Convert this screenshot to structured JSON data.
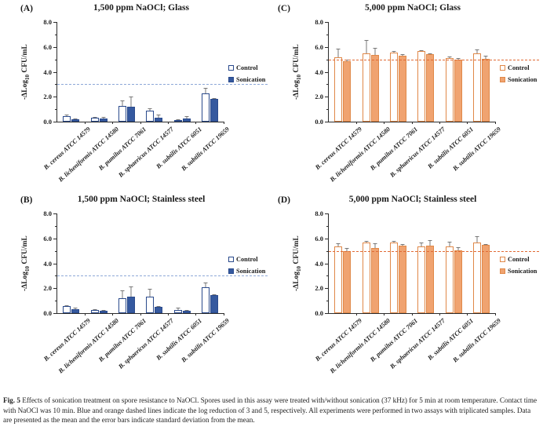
{
  "figure": {
    "caption_label": "Fig. 5",
    "caption_text": " Effects of sonication treatment on spore resistance to NaOCl. Spores used in this assay were treated with/without sonication (37 kHz) for 5 min at room temperature. Contact time with NaOCl was 10 min. Blue and orange dashed lines indicate the log reduction of 3 and 5, respectively. All experiments were performed in two assays with triplicated samples. Data are presented as the mean and the error bars indicate standard deviation from the mean."
  },
  "legend": {
    "control_label": "Control",
    "sonication_label": "Sonication"
  },
  "colors": {
    "blue_fill": "#35599f",
    "blue_border": "#2a4a8c",
    "blue_dashed_line": "#8ea8d8",
    "orange_fill": "#f0a370",
    "orange_border": "#e08848",
    "orange_dashed_line": "#e06a35",
    "error_bar": "#777777",
    "axis": "#2b2b2b"
  },
  "yticks": [
    "0.0",
    "2.0",
    "4.0",
    "6.0",
    "8.0"
  ],
  "ylabel_parts": [
    "-ΔLog",
    "10",
    " CFU/mL"
  ],
  "categories": [
    "B. cereus ATCC 14579",
    "B. licheniformis ATCC 14580",
    "B. pumilus ATCC 7061",
    "B. sphaericus ATCC 14577",
    "B. subtilis ATCC 6051",
    "B. subtilis ATCC 19659"
  ],
  "chart_data": [
    {
      "panel": "(A)",
      "type": "bar",
      "title": "1,500 ppm NaOCl; Glass",
      "xlabel": "",
      "ylabel": "-ΔLog10 CFU/mL",
      "ylim": [
        0,
        8
      ],
      "yticks": [
        0.0,
        2.0,
        4.0,
        6.0,
        8.0
      ],
      "dashed_line_y": 3,
      "accent": "blue",
      "legend_position": "right",
      "categories": [
        "B. cereus ATCC 14579",
        "B. licheniformis ATCC 14580",
        "B. pumilus ATCC 7061",
        "B. sphaericus ATCC 14577",
        "B. subtilis ATCC 6051",
        "B. subtilis ATCC 19659"
      ],
      "series": [
        {
          "name": "Control",
          "values": [
            0.45,
            0.3,
            1.25,
            0.9,
            0.15,
            2.25
          ],
          "errors": [
            0.1,
            0.05,
            0.45,
            0.2,
            0.05,
            0.45
          ]
        },
        {
          "name": "Sonication",
          "values": [
            0.2,
            0.28,
            1.2,
            0.3,
            0.25,
            1.8
          ],
          "errors": [
            0.05,
            0.12,
            0.8,
            0.25,
            0.2,
            0.1
          ]
        }
      ]
    },
    {
      "panel": "(C)",
      "type": "bar",
      "title": "5,000 ppm NaOCl; Glass",
      "xlabel": "",
      "ylabel": "-ΔLog10 CFU/mL",
      "ylim": [
        0,
        8
      ],
      "yticks": [
        0.0,
        2.0,
        4.0,
        6.0,
        8.0
      ],
      "dashed_line_y": 5,
      "accent": "orange",
      "legend_position": "right",
      "categories": [
        "B. cereus ATCC 14579",
        "B. licheniformis ATCC 14580",
        "B. pumilus ATCC 7061",
        "B. sphaericus ATCC 14577",
        "B. subtilis ATCC 6051",
        "B. subtilis ATCC 19659"
      ],
      "series": [
        {
          "name": "Control",
          "values": [
            5.15,
            5.45,
            5.55,
            5.7,
            5.1,
            5.45
          ],
          "errors": [
            0.7,
            1.1,
            0.15,
            0.05,
            0.15,
            0.35
          ]
        },
        {
          "name": "Sonication",
          "values": [
            4.85,
            5.35,
            5.3,
            5.4,
            5.0,
            5.05
          ],
          "errors": [
            0.1,
            0.55,
            0.1,
            0.1,
            0.08,
            0.25
          ]
        }
      ]
    },
    {
      "panel": "(B)",
      "type": "bar",
      "title": "1,500 ppm NaOCl; Stainless steel",
      "xlabel": "",
      "ylabel": "-ΔLog10 CFU/mL",
      "ylim": [
        0,
        8
      ],
      "yticks": [
        0.0,
        2.0,
        4.0,
        6.0,
        8.0
      ],
      "dashed_line_y": 3,
      "accent": "blue",
      "legend_position": "right",
      "categories": [
        "B. cereus ATCC 14579",
        "B. licheniformis ATCC 14580",
        "B. pumilus ATCC 7061",
        "B. sphaericus ATCC 14577",
        "B. subtilis ATCC 6051",
        "B. subtilis ATCC 19659"
      ],
      "series": [
        {
          "name": "Control",
          "values": [
            0.55,
            0.27,
            1.2,
            1.35,
            0.25,
            2.05
          ],
          "errors": [
            0.08,
            0.03,
            0.6,
            0.6,
            0.18,
            0.4
          ]
        },
        {
          "name": "Sonication",
          "values": [
            0.3,
            0.2,
            1.3,
            0.5,
            0.2,
            1.45
          ],
          "errors": [
            0.12,
            0.07,
            0.85,
            0.05,
            0.08,
            0.08
          ]
        }
      ]
    },
    {
      "panel": "(D)",
      "type": "bar",
      "title": "5,000 ppm NaOCl; Stainless steel",
      "xlabel": "",
      "ylabel": "-ΔLog10 CFU/mL",
      "ylim": [
        0,
        8
      ],
      "yticks": [
        0.0,
        2.0,
        4.0,
        6.0,
        8.0
      ],
      "dashed_line_y": 5,
      "accent": "orange",
      "legend_position": "right",
      "categories": [
        "B. cereus ATCC 14579",
        "B. licheniformis ATCC 14580",
        "B. pumilus ATCC 7061",
        "B. sphaericus ATCC 14577",
        "B. subtilis ATCC 6051",
        "B. subtilis ATCC 19659"
      ],
      "series": [
        {
          "name": "Control",
          "values": [
            5.35,
            5.7,
            5.65,
            5.35,
            5.35,
            5.7
          ],
          "errors": [
            0.25,
            0.1,
            0.15,
            0.3,
            0.4,
            0.5
          ]
        },
        {
          "name": "Sonication",
          "values": [
            4.95,
            5.25,
            5.4,
            5.4,
            5.05,
            5.45
          ],
          "errors": [
            0.3,
            0.35,
            0.12,
            0.45,
            0.25,
            0.12
          ]
        }
      ]
    }
  ]
}
